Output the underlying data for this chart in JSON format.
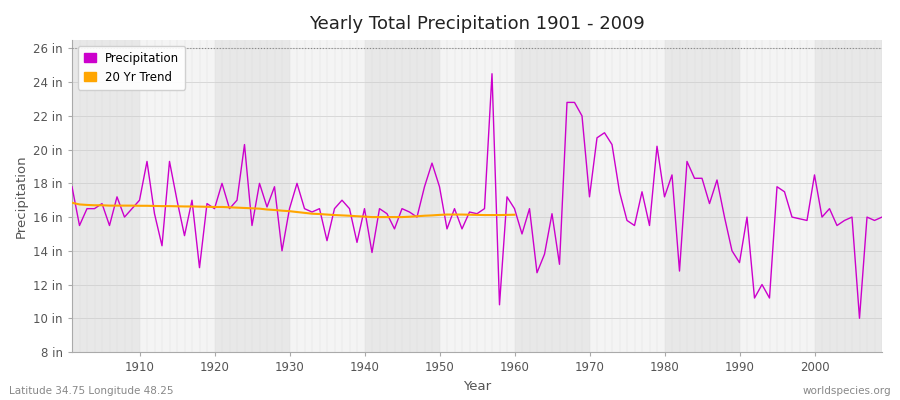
{
  "title": "Yearly Total Precipitation 1901 - 2009",
  "xlabel": "Year",
  "ylabel": "Precipitation",
  "lat_lon_label": "Latitude 34.75 Longitude 48.25",
  "source_label": "worldspecies.org",
  "start_year": 1901,
  "precipitation_color": "#cc00cc",
  "trend_color": "#ffa500",
  "bg_color": "#ffffff",
  "plot_bg_color": "#f0f0f0",
  "band_color1": "#e8e8e8",
  "band_color2": "#f4f4f4",
  "ylim": [
    8,
    26.5
  ],
  "ytick_labels": [
    "8 in",
    "10 in",
    "12 in",
    "14 in",
    "16 in",
    "18 in",
    "20 in",
    "22 in",
    "24 in",
    "26 in"
  ],
  "ytick_values": [
    8,
    10,
    12,
    14,
    16,
    18,
    20,
    22,
    24,
    26
  ],
  "xlim": [
    1901,
    2009
  ],
  "precipitation": [
    17.8,
    15.5,
    16.5,
    16.5,
    16.8,
    15.5,
    17.2,
    16.0,
    16.5,
    17.0,
    19.3,
    16.2,
    14.3,
    19.3,
    17.0,
    14.9,
    17.0,
    13.0,
    16.8,
    16.5,
    18.0,
    16.5,
    17.0,
    20.3,
    15.5,
    18.0,
    16.6,
    17.8,
    14.0,
    16.5,
    18.0,
    16.5,
    16.3,
    16.5,
    14.6,
    16.5,
    17.0,
    16.5,
    14.5,
    16.5,
    13.9,
    16.5,
    16.2,
    15.3,
    16.5,
    16.3,
    16.0,
    17.8,
    19.2,
    17.8,
    15.3,
    16.5,
    15.3,
    16.3,
    16.2,
    16.5,
    24.5,
    10.8,
    17.2,
    16.5,
    15.0,
    16.5,
    12.7,
    13.8,
    16.2,
    13.2,
    22.8,
    22.8,
    22.0,
    17.2,
    20.7,
    21.0,
    20.3,
    17.5,
    15.8,
    15.5,
    17.5,
    15.5,
    20.2,
    17.2,
    18.5,
    12.8,
    19.3,
    18.3,
    18.3,
    16.8,
    18.2,
    16.0,
    14.0,
    13.3,
    16.0,
    11.2,
    12.0,
    11.2,
    17.8,
    17.5,
    16.0,
    15.9,
    15.8,
    18.5,
    16.0,
    16.5,
    15.5,
    15.8,
    16.0,
    10.0,
    16.0,
    15.8,
    16.0
  ],
  "trend": [
    16.85,
    16.75,
    16.72,
    16.7,
    16.7,
    16.68,
    16.68,
    16.68,
    16.68,
    16.67,
    16.67,
    16.66,
    16.65,
    16.65,
    16.64,
    16.63,
    16.63,
    16.62,
    16.61,
    16.6,
    16.6,
    16.58,
    16.56,
    16.54,
    16.52,
    16.5,
    16.45,
    16.42,
    16.38,
    16.35,
    16.3,
    16.25,
    16.2,
    16.18,
    16.15,
    16.12,
    16.1,
    16.08,
    16.05,
    16.03,
    16.0,
    16.0,
    16.0,
    16.0,
    16.0,
    16.02,
    16.05,
    16.08,
    16.1,
    16.13,
    16.15,
    16.15,
    16.15,
    16.14,
    16.13,
    16.12,
    16.12,
    16.12,
    16.13,
    16.14,
    null,
    null,
    null,
    null,
    null,
    null,
    null,
    null,
    null,
    null,
    null,
    null,
    null,
    null,
    null,
    null,
    null,
    null,
    null,
    null,
    null,
    null,
    null,
    null,
    null,
    null,
    null,
    null,
    null,
    null,
    null,
    null,
    null,
    null,
    null,
    null,
    null,
    null,
    null,
    null,
    null,
    null,
    null,
    null,
    null,
    null,
    null,
    null,
    null
  ]
}
